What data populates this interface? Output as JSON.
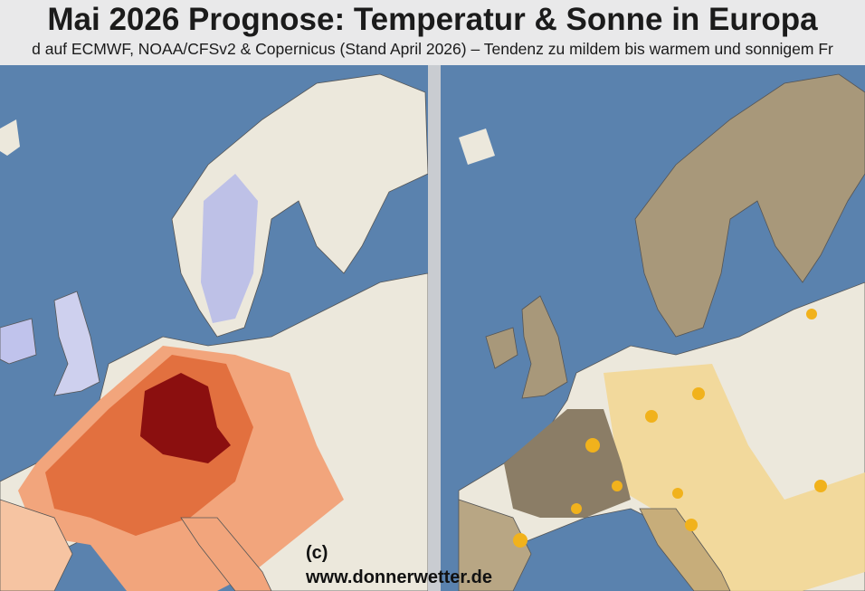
{
  "title": "Mai 2026 Prognose: Temperatur & Sonne in Europa",
  "subtitle": "d auf ECMWF, NOAA/CFSv2 & Copernicus (Stand April 2026) – Tendenz zu mildem bis warmem und sonnigem Fr",
  "maps": {
    "left": {
      "theme": "temperature-anomaly",
      "colors": {
        "sea": "#5a82ae",
        "land": "#ece8dc",
        "cool": "#b9bde8",
        "warm": "#f2a57c",
        "hot": "#e2703f",
        "very_hot": "#8b0f0f"
      }
    },
    "right": {
      "theme": "sunshine",
      "colors": {
        "sea": "#5a82ae",
        "land": "#ece8dc",
        "tan": "#a8987a",
        "brown": "#8b7d66",
        "sunny": "#f4d58c"
      },
      "icon": "sun-icon"
    }
  },
  "watermark": {
    "line1": "(c)",
    "line2": "www.donnerwetter.de"
  }
}
